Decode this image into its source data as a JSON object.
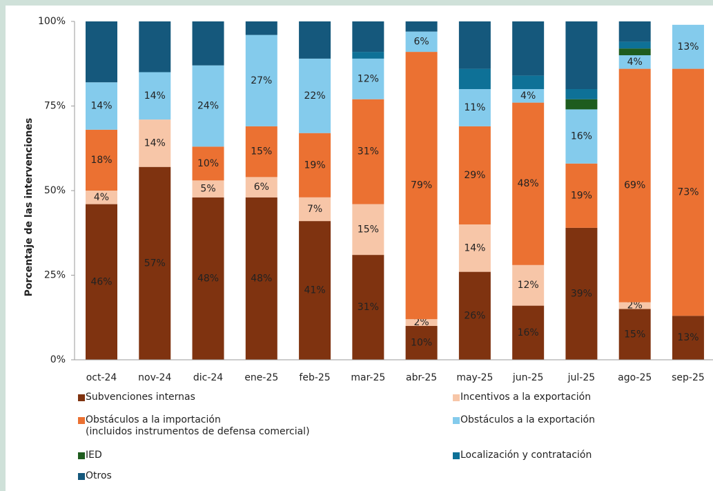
{
  "chart_data": {
    "type": "stacked_bar",
    "y_label": "Porcentaje de las intervenciones",
    "categories": [
      "oct-24",
      "nov-24",
      "dic-24",
      "ene-25",
      "feb-25",
      "mar-25",
      "abr-25",
      "may-25",
      "jun-25",
      "jul-25",
      "ago-25",
      "sep-25"
    ],
    "ylim": [
      0,
      100
    ],
    "yticks": [
      {
        "value": 0,
        "label": "0%"
      },
      {
        "value": 25,
        "label": "25%"
      },
      {
        "value": 50,
        "label": "50%"
      },
      {
        "value": 75,
        "label": "75%"
      },
      {
        "value": 100,
        "label": "100%"
      }
    ],
    "legend": "bottom",
    "series": [
      {
        "name": "Subvenciones internas",
        "color": "#7f3310",
        "values": [
          46,
          57,
          48,
          48,
          41,
          31,
          10,
          26,
          16,
          39,
          15,
          13
        ],
        "value_labels": [
          "46%",
          "57%",
          "48%",
          "48%",
          "41%",
          "31%",
          "10%",
          "26%",
          "16%",
          "39%",
          "15%",
          "13%"
        ]
      },
      {
        "name": "Incentivos a la exportación",
        "color": "#f7c6a8",
        "values": [
          4,
          14,
          5,
          6,
          7,
          15,
          2,
          14,
          12,
          0,
          2,
          0
        ],
        "value_labels": [
          "4%",
          "14%",
          "5%",
          "6%",
          "7%",
          "15%",
          "2%",
          "14%",
          "12%",
          null,
          "2%",
          null
        ]
      },
      {
        "name": "Obstáculos a la importación\n(incluidos instrumentos de defensa comercial)",
        "color": "#eb7132",
        "values": [
          18,
          0,
          10,
          15,
          19,
          31,
          79,
          29,
          48,
          19,
          69,
          73
        ],
        "value_labels": [
          "18%",
          null,
          "10%",
          "15%",
          "19%",
          "31%",
          "79%",
          "29%",
          "48%",
          "19%",
          "69%",
          "73%"
        ]
      },
      {
        "name": "Obstáculos a la exportación",
        "color": "#84cbec",
        "values": [
          14,
          14,
          24,
          27,
          22,
          12,
          6,
          11,
          4,
          16,
          4,
          13
        ],
        "value_labels": [
          "14%",
          "14%",
          "24%",
          "27%",
          "22%",
          "12%",
          "6%",
          "11%",
          "4%",
          "16%",
          "4%",
          "13%"
        ]
      },
      {
        "name": "IED",
        "color": "#1e5c1e",
        "values": [
          0,
          0,
          0,
          0,
          0,
          0,
          0,
          0,
          0,
          3,
          2,
          0
        ]
      },
      {
        "name": "Localización y contratación",
        "color": "#0e7197",
        "values": [
          0,
          0,
          0,
          0,
          0,
          2,
          0,
          6,
          4,
          3,
          2,
          0
        ]
      },
      {
        "name": "Otros",
        "color": "#15587c",
        "values": [
          18,
          15,
          13,
          4,
          11,
          9,
          3,
          14,
          16,
          20,
          6,
          0
        ]
      }
    ]
  }
}
